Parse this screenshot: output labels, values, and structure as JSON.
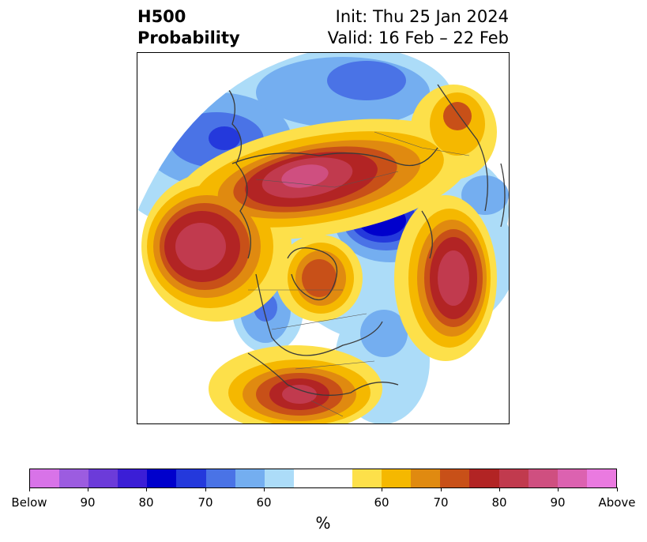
{
  "header": {
    "title_line1": "H500",
    "title_line2": "Probability",
    "init_label": "Init: Thu 25 Jan 2024",
    "valid_label": "Valid: 16 Feb – 22 Feb"
  },
  "colorbar": {
    "unit": "%",
    "colors": [
      "#d873e8",
      "#9c5ce0",
      "#6c3bd9",
      "#3b1ed6",
      "#0000cc",
      "#2439dc",
      "#4a73e6",
      "#74aef0",
      "#acdcf8",
      "#ffffff",
      "#ffffff",
      "#fde04a",
      "#f5b800",
      "#e08a10",
      "#c85018",
      "#b22424",
      "#c13a4e",
      "#cf4f80",
      "#dc62b0",
      "#ea7ae0"
    ],
    "tick_labels": [
      "Below",
      "90",
      "80",
      "70",
      "60",
      "60",
      "70",
      "80",
      "90",
      "Above"
    ]
  },
  "map": {
    "projection": "north-polar-stereographic",
    "anomalies": [
      {
        "sign": "above",
        "level": 4,
        "region": "north-pacific-aleutians"
      },
      {
        "sign": "above",
        "level": 4,
        "region": "northern-russia-siberia"
      },
      {
        "sign": "above",
        "level": 4,
        "region": "southern-united-states"
      },
      {
        "sign": "above",
        "level": 3,
        "region": "hudson-bay-canada"
      },
      {
        "sign": "above",
        "level": 4,
        "region": "central-asia"
      },
      {
        "sign": "above",
        "level": 2,
        "region": "scandinavia-north-atlantic"
      },
      {
        "sign": "below",
        "level": 5,
        "region": "north-atlantic-greenland"
      },
      {
        "sign": "below",
        "level": 3,
        "region": "western-canada"
      },
      {
        "sign": "below",
        "level": 3,
        "region": "northeast-asia"
      },
      {
        "sign": "below",
        "level": 2,
        "region": "eastern-canada"
      },
      {
        "sign": "below",
        "level": 3,
        "region": "eastern-siberia"
      }
    ]
  }
}
